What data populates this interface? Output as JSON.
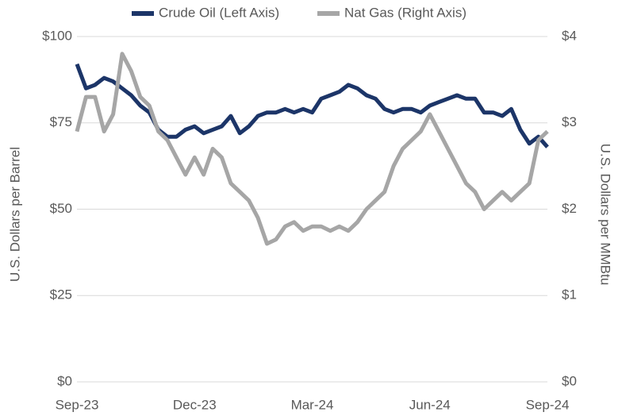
{
  "chart_data": {
    "type": "line",
    "categories": [
      "Sep-23",
      null,
      null,
      null,
      null,
      null,
      null,
      null,
      null,
      null,
      null,
      null,
      null,
      "Dec-23",
      null,
      null,
      null,
      null,
      null,
      null,
      null,
      null,
      null,
      null,
      null,
      null,
      "Mar-24",
      null,
      null,
      null,
      null,
      null,
      null,
      null,
      null,
      null,
      null,
      null,
      null,
      "Jun-24",
      null,
      null,
      null,
      null,
      null,
      null,
      null,
      null,
      null,
      null,
      null,
      null,
      "Sep-24"
    ],
    "series": [
      {
        "name": "Crude Oil (Left Axis)",
        "color": "#1c3568",
        "axis": "y",
        "values": [
          92,
          85,
          86,
          88,
          87,
          85,
          83,
          80,
          78,
          73,
          71,
          71,
          73,
          74,
          72,
          73,
          74,
          77,
          72,
          74,
          77,
          78,
          78,
          79,
          78,
          79,
          78,
          82,
          83,
          84,
          86,
          85,
          83,
          82,
          79,
          78,
          79,
          79,
          78,
          80,
          81,
          82,
          83,
          82,
          82,
          78,
          78,
          77,
          79,
          73,
          69,
          71,
          68
        ]
      },
      {
        "name": "Nat Gas (Right Axis)",
        "color": "#a6a6a6",
        "axis": "y2",
        "values": [
          2.9,
          3.3,
          3.3,
          2.9,
          3.1,
          3.8,
          3.6,
          3.3,
          3.2,
          2.9,
          2.8,
          2.6,
          2.4,
          2.6,
          2.4,
          2.7,
          2.6,
          2.3,
          2.2,
          2.1,
          1.9,
          1.6,
          1.65,
          1.8,
          1.85,
          1.75,
          1.8,
          1.8,
          1.75,
          1.8,
          1.75,
          1.85,
          2.0,
          2.1,
          2.2,
          2.5,
          2.7,
          2.8,
          2.9,
          3.1,
          2.9,
          2.7,
          2.5,
          2.3,
          2.2,
          2.0,
          2.1,
          2.2,
          2.1,
          2.2,
          2.3,
          2.8,
          2.9
        ]
      }
    ],
    "ylabel": "U.S. Dollars per Barrel",
    "y2label": "U.S. Dollars per MMBtu",
    "ylim": [
      0,
      100
    ],
    "yticks": [
      {
        "value": 0,
        "label": "$0"
      },
      {
        "value": 25,
        "label": "$25"
      },
      {
        "value": 50,
        "label": "$50"
      },
      {
        "value": 75,
        "label": "$75"
      },
      {
        "value": 100,
        "label": "$100"
      }
    ],
    "y2lim": [
      0,
      4
    ],
    "y2ticks": [
      {
        "value": 0,
        "label": "$0"
      },
      {
        "value": 1,
        "label": "$1"
      },
      {
        "value": 2,
        "label": "$2"
      },
      {
        "value": 3,
        "label": "$3"
      },
      {
        "value": 4,
        "label": "$4"
      }
    ],
    "grid": true,
    "legend": "top"
  }
}
